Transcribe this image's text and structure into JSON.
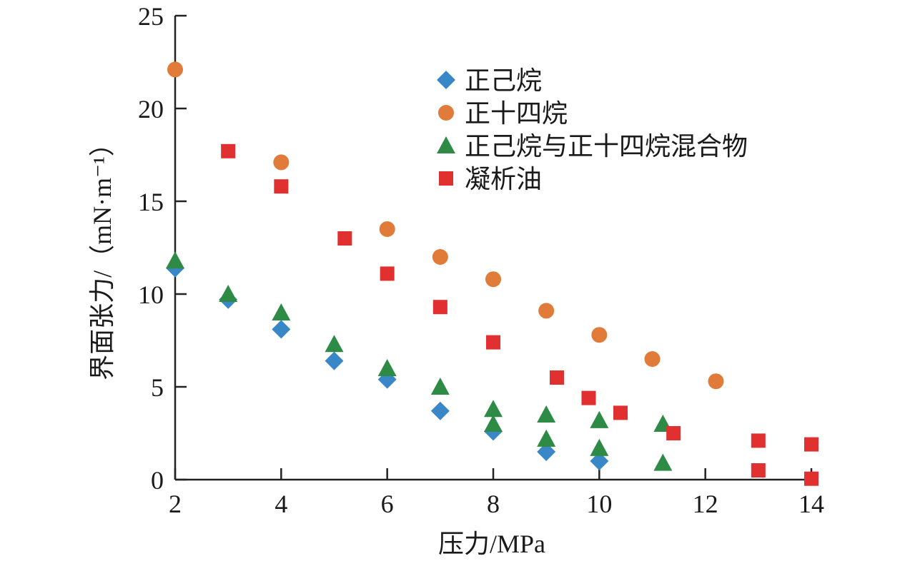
{
  "chart_data": {
    "type": "scatter",
    "title": "",
    "xlabel": "压力/MPa",
    "ylabel": "界面张力/（mN·m⁻¹）",
    "xlim": [
      2,
      14
    ],
    "ylim": [
      0,
      25
    ],
    "xticks": [
      2,
      4,
      6,
      8,
      10,
      12,
      14
    ],
    "yticks": [
      0,
      5,
      10,
      15,
      20,
      25
    ],
    "grid": false,
    "legend_position": "top-right",
    "series": [
      {
        "name": "正己烷",
        "marker": "diamond",
        "color": "#3a87c8",
        "points": [
          [
            2,
            11.4
          ],
          [
            3,
            9.7
          ],
          [
            4,
            8.1
          ],
          [
            5,
            6.4
          ],
          [
            6,
            5.4
          ],
          [
            7,
            3.7
          ],
          [
            8,
            2.6
          ],
          [
            9,
            1.5
          ],
          [
            10,
            1.0
          ]
        ]
      },
      {
        "name": "正十四烷",
        "marker": "circle",
        "color": "#e07b39",
        "points": [
          [
            2,
            22.1
          ],
          [
            4,
            17.1
          ],
          [
            6,
            13.5
          ],
          [
            7,
            12.0
          ],
          [
            8,
            10.8
          ],
          [
            9,
            9.1
          ],
          [
            10,
            7.8
          ],
          [
            11,
            6.5
          ],
          [
            12.2,
            5.3
          ]
        ]
      },
      {
        "name": "正己烷与正十四烷混合物",
        "marker": "triangle",
        "color": "#2e8b45",
        "points": [
          [
            2,
            11.8
          ],
          [
            3,
            10.0
          ],
          [
            4,
            9.0
          ],
          [
            5,
            7.3
          ],
          [
            6,
            6.0
          ],
          [
            7,
            5.0
          ],
          [
            8,
            3.8
          ],
          [
            8,
            3.0
          ],
          [
            9,
            3.5
          ],
          [
            9,
            2.2
          ],
          [
            10,
            3.2
          ],
          [
            10,
            1.7
          ],
          [
            11.2,
            3.0
          ],
          [
            11.2,
            0.9
          ]
        ]
      },
      {
        "name": "凝析油",
        "marker": "square",
        "color": "#e03030",
        "points": [
          [
            3,
            17.7
          ],
          [
            4,
            15.8
          ],
          [
            5.2,
            13.0
          ],
          [
            6,
            11.1
          ],
          [
            7,
            9.3
          ],
          [
            8,
            7.4
          ],
          [
            9.2,
            5.5
          ],
          [
            9.8,
            4.4
          ],
          [
            10.4,
            3.6
          ],
          [
            11.4,
            2.5
          ],
          [
            13,
            2.1
          ],
          [
            13,
            0.5
          ],
          [
            14,
            1.9
          ],
          [
            14,
            0.05
          ]
        ]
      }
    ]
  }
}
